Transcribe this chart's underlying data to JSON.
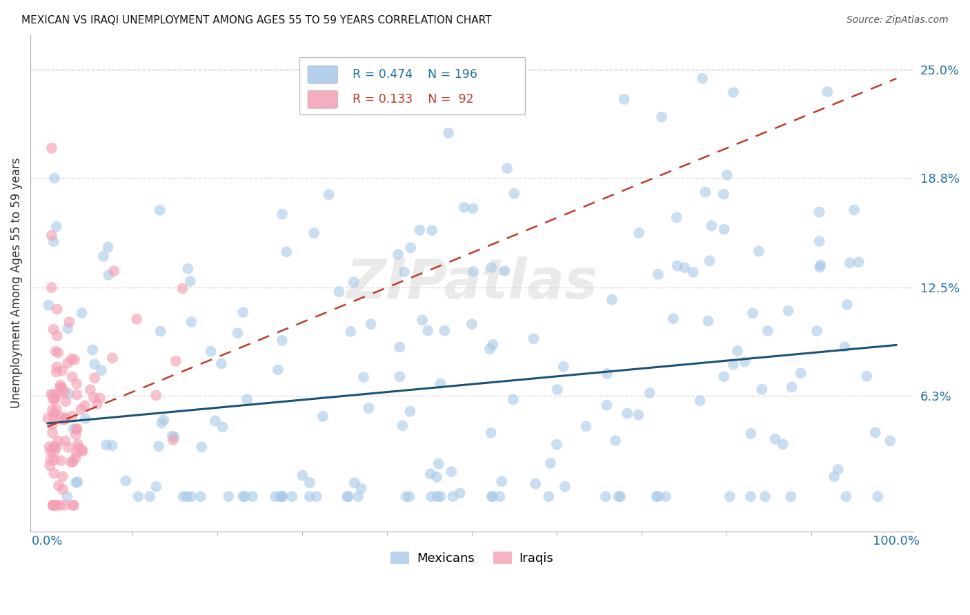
{
  "title": "MEXICAN VS IRAQI UNEMPLOYMENT AMONG AGES 55 TO 59 YEARS CORRELATION CHART",
  "source": "Source: ZipAtlas.com",
  "ylabel": "Unemployment Among Ages 55 to 59 years",
  "y_tick_labels": [
    "6.3%",
    "12.5%",
    "18.8%",
    "25.0%"
  ],
  "y_tick_values": [
    0.063,
    0.125,
    0.188,
    0.25
  ],
  "xlim": [
    -0.02,
    1.02
  ],
  "ylim": [
    -0.015,
    0.27
  ],
  "legend_label_1": "Mexicans",
  "legend_label_2": "Iraqis",
  "blue_color": "#a8c8e8",
  "pink_color": "#f4a0b5",
  "blue_line_color": "#1a5276",
  "pink_line_color": "#c0392b",
  "axis_label_color": "#2471a3",
  "right_tick_color": "#2471a3",
  "watermark_text": "ZIPatlas",
  "grid_color": "#d5d8dc",
  "background_color": "#ffffff",
  "mex_trend_x0": 0.0,
  "mex_trend_y0": 0.047,
  "mex_trend_x1": 1.0,
  "mex_trend_y1": 0.092,
  "irq_trend_x0": 0.0,
  "irq_trend_y0": 0.045,
  "irq_trend_x1": 1.0,
  "irq_trend_y1": 0.245
}
